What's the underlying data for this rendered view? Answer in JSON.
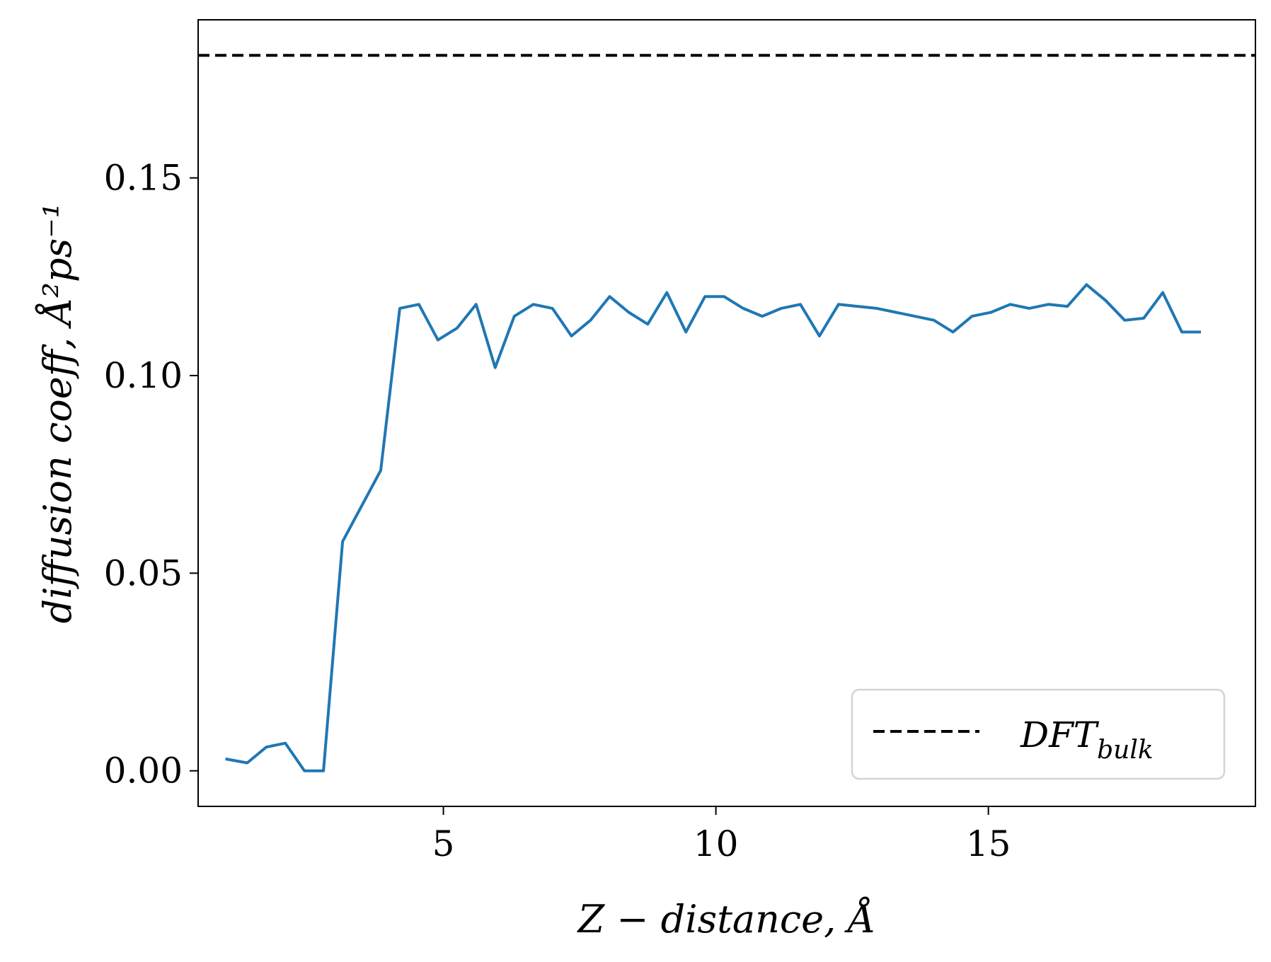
{
  "chart_data": {
    "type": "line",
    "xlabel": "Z − distance, Å",
    "ylabel": "diffusion coeff, Å²ps⁻¹",
    "xlim": [
      0.5,
      19.9
    ],
    "ylim": [
      -0.009,
      0.19
    ],
    "x_ticks": [
      5,
      10,
      15
    ],
    "x_tick_labels": [
      "5",
      "10",
      "15"
    ],
    "y_ticks": [
      0.0,
      0.05,
      0.1,
      0.15
    ],
    "y_tick_labels": [
      "0.00",
      "0.05",
      "0.10",
      "0.15"
    ],
    "grid": false,
    "legend": {
      "placement": "lower-right",
      "entries": [
        {
          "label": "DFT",
          "label_sub": "bulk",
          "style": "dashed",
          "color": "#000000"
        }
      ]
    },
    "reference_lines": [
      {
        "y": 0.181,
        "style": "dashed",
        "color": "#000000"
      }
    ],
    "series": [
      {
        "color": "#1f77b4",
        "x": [
          1.0,
          1.4,
          1.75,
          2.1,
          2.45,
          2.8,
          3.15,
          3.5,
          3.85,
          4.2,
          4.55,
          4.9,
          5.25,
          5.6,
          5.95,
          6.3,
          6.65,
          7.0,
          7.35,
          7.7,
          8.05,
          8.4,
          8.75,
          9.1,
          9.45,
          9.8,
          10.15,
          10.5,
          10.85,
          11.2,
          11.55,
          11.9,
          12.25,
          12.6,
          12.95,
          13.3,
          13.65,
          14.0,
          14.35,
          14.7,
          15.05,
          15.4,
          15.75,
          16.1,
          16.45,
          16.8,
          17.15,
          17.5,
          17.85,
          18.2,
          18.55,
          18.9
        ],
        "y": [
          0.003,
          0.002,
          0.006,
          0.007,
          0.0,
          0.0,
          0.058,
          0.067,
          0.076,
          0.117,
          0.118,
          0.109,
          0.112,
          0.118,
          0.102,
          0.115,
          0.118,
          0.117,
          0.11,
          0.114,
          0.12,
          0.116,
          0.113,
          0.121,
          0.111,
          0.12,
          0.12,
          0.117,
          0.115,
          0.117,
          0.118,
          0.11,
          0.118,
          0.1175,
          0.117,
          0.116,
          0.115,
          0.114,
          0.111,
          0.115,
          0.116,
          0.118,
          0.117,
          0.118,
          0.1175,
          0.123,
          0.119,
          0.114,
          0.1145,
          0.121,
          0.111,
          0.111
        ]
      }
    ]
  }
}
